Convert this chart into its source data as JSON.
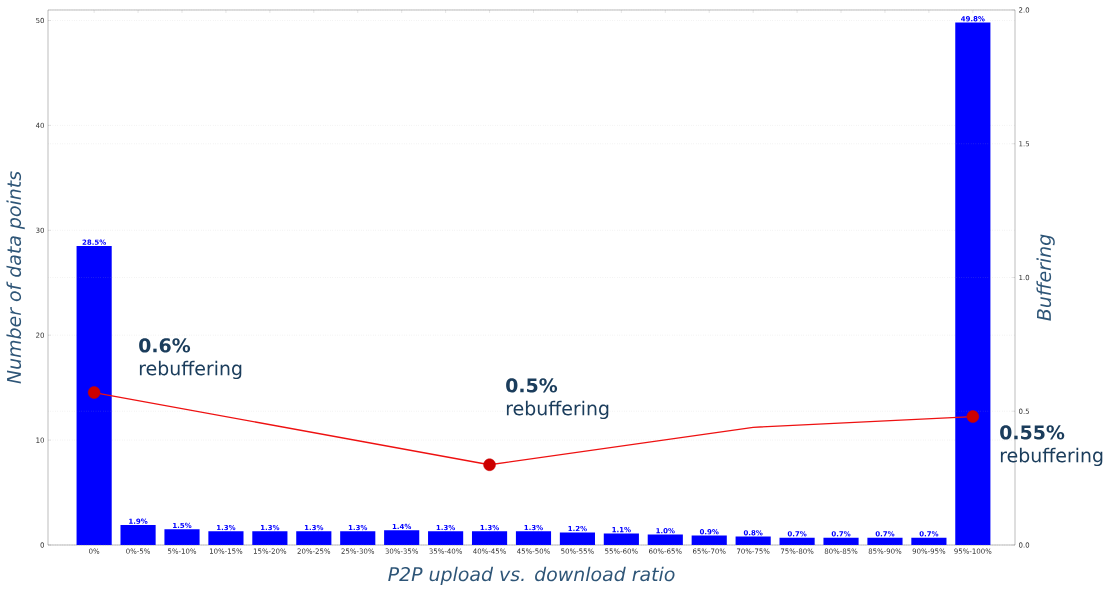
{
  "chart_data": {
    "type": "bar",
    "xlabel": "P2P upload vs. download ratio",
    "ylabel": "Number of data points",
    "y2label": "Buffering",
    "categories": [
      "0%",
      "0%-5%",
      "5%-10%",
      "10%-15%",
      "15%-20%",
      "20%-25%",
      "25%-30%",
      "30%-35%",
      "35%-40%",
      "40%-45%",
      "45%-50%",
      "50%-55%",
      "55%-60%",
      "60%-65%",
      "65%-70%",
      "70%-75%",
      "75%-80%",
      "80%-85%",
      "85%-90%",
      "90%-95%",
      "95%-100%"
    ],
    "ylim": [
      0,
      51
    ],
    "yticks": [
      0,
      10,
      20,
      30,
      40,
      50
    ],
    "y2lim": [
      0,
      2
    ],
    "y2ticks": [
      {
        "value": 0,
        "label": "0.0"
      },
      {
        "value": 0.5,
        "label": "0.5"
      },
      {
        "value": 1,
        "label": "1.0"
      },
      {
        "value": 1.5,
        "label": "1.5"
      },
      {
        "value": 2,
        "label": "2.0"
      }
    ],
    "grid": "y",
    "series": [
      {
        "color": "#0000ff",
        "values": [
          28.5,
          1.9,
          1.5,
          1.3,
          1.3,
          1.3,
          1.3,
          1.4,
          1.3,
          1.3,
          1.3,
          1.2,
          1.1,
          1.0,
          0.9,
          0.8,
          0.7,
          0.7,
          0.7,
          0.7,
          49.8
        ],
        "value_labels": [
          "28.5%",
          "1.9%",
          "1.5%",
          "1.3%",
          "1.3%",
          "1.3%",
          "1.3%",
          "1.4%",
          "1.3%",
          "1.3%",
          "1.3%",
          "1.2%",
          "1.1%",
          "1.0%",
          "0.9%",
          "0.8%",
          "0.7%",
          "0.7%",
          "0.7%",
          "0.7%",
          "49.8%"
        ]
      },
      {
        "type": "line",
        "axis": "y2",
        "color": "#ee1111",
        "marker": "none",
        "x": [
          "0%",
          "40%-45%",
          "70%-75%",
          "95%-100%"
        ],
        "values": [
          0.57,
          0.3,
          0.44,
          0.48
        ]
      },
      {
        "type": "scatter",
        "axis": "y2",
        "color": "#cc0000",
        "marker": "circle",
        "x": [
          "0%",
          "40%-45%",
          "95%-100%"
        ],
        "values": [
          0.57,
          0.3,
          0.48
        ]
      }
    ],
    "annotations": [
      "**0.6%** rebuffering",
      "**0.5%** rebuffering",
      "**0.55%** rebuffering"
    ]
  }
}
